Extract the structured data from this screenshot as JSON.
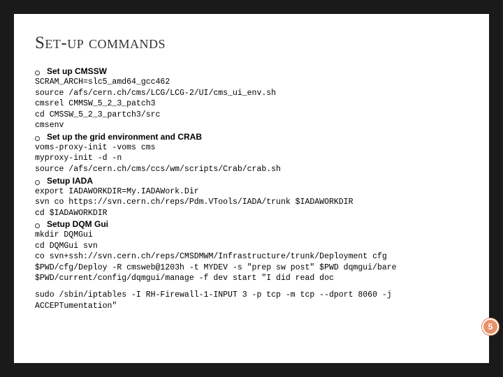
{
  "title": "Set-up commands",
  "sections": [
    {
      "heading": "Set up CMSSW",
      "lines": [
        "SCRAM_ARCH=slc5_amd64_gcc462",
        "source /afs/cern.ch/cms/LCG/LCG-2/UI/cms_ui_env.sh",
        "cmsrel CMMSW_5_2_3_patch3",
        "cd CMSSW_5_2_3_partch3/src",
        "cmsenv"
      ]
    },
    {
      "heading": "Set up the grid environment and CRAB",
      "lines": [
        "voms-proxy-init -voms cms",
        "myproxy-init -d -n",
        "source /afs/cern.ch/cms/ccs/wm/scripts/Crab/crab.sh"
      ]
    },
    {
      "heading": "Setup IADA",
      "lines": [
        "export IADAWORKDIR=My.IADAWork.Dir",
        "svn co https://svn.cern.ch/reps/Pdm.VTools/IADA/trunk $IADAWORKDIR",
        "cd $IADAWORKDIR"
      ]
    },
    {
      "heading": "Setup DQM Gui",
      "lines": [
        "mkdir DQMGui",
        "cd DQMGui svn",
        "co svn+ssh://svn.cern.ch/reps/CMSDMWM/Infrastructure/trunk/Deployment cfg",
        "$PWD/cfg/Deploy -R cmsweb@1203h -t MYDEV -s \"prep sw post\" $PWD dqmgui/bare",
        "$PWD/current/config/dqmgui/manage -f dev start \"I did read doc",
        "",
        "sudo /sbin/iptables -I RH-Firewall-1-INPUT 3 -p tcp -m tcp --dport 8060 -j ACCEPTumentation\""
      ]
    }
  ],
  "page_number": "5",
  "colors": {
    "badge_bg": "#e8926a",
    "badge_border": "#ffffff",
    "slide_bg": "#ffffff",
    "outer_bg": "#1a1a1a"
  }
}
